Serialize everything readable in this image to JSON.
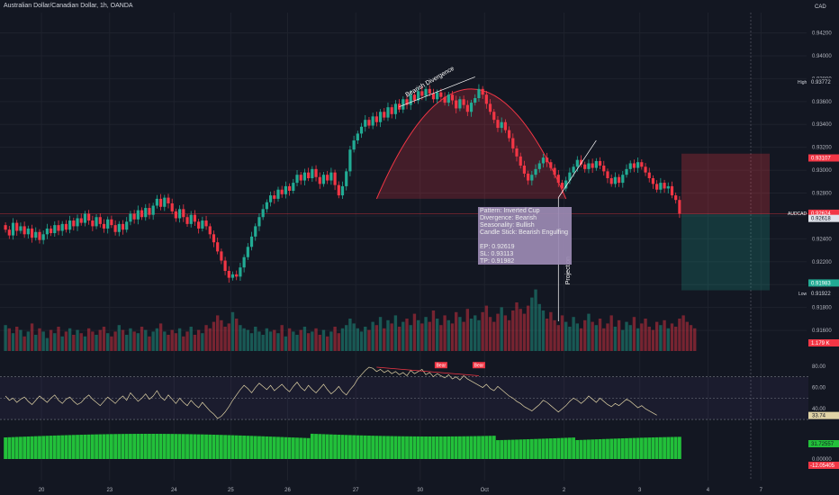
{
  "header": {
    "title": "Australian Dollar/Canadian Dollar, 1h, OANDA",
    "currency": "CAD"
  },
  "colors": {
    "background": "#131722",
    "bull": "#22ab94",
    "bear": "#f23645",
    "label_text": "#d1d4dc",
    "annotation_bg": "#9c8ab4",
    "macd_hist": "#22c03a"
  },
  "annotation": {
    "lines": [
      "Pattern: Inverted Cup",
      "Divergence: Bearish",
      "Seasonality: Bullish",
      "Candle Stick: Bearish Engulfing",
      "",
      "EP: 0.92619",
      "SL: 0.93113",
      "TP: 0.91982"
    ]
  },
  "chart_data": [
    {
      "type": "candlestick",
      "title": "",
      "price_axis_ticks": [
        "0.94200",
        "0.94000",
        "0.93800",
        "0.93600",
        "0.93400",
        "0.93200",
        "0.93000",
        "0.92800",
        "0.92600",
        "0.92400",
        "0.92200",
        "0.92000",
        "0.91800",
        "0.91600"
      ],
      "price_range": [
        0.9142,
        0.9433
      ],
      "time_axis_ticks": [
        "20",
        "23",
        "24",
        "25",
        "26",
        "27",
        "30",
        "Oct",
        "2",
        "3",
        "4",
        "7"
      ],
      "series_close": [
        0.9248,
        0.9243,
        0.9254,
        0.9247,
        0.9251,
        0.9244,
        0.9249,
        0.9241,
        0.9246,
        0.9239,
        0.9244,
        0.9249,
        0.9245,
        0.9252,
        0.9247,
        0.9253,
        0.9248,
        0.9256,
        0.9251,
        0.9258,
        0.9254,
        0.9262,
        0.9256,
        0.9251,
        0.9259,
        0.9253,
        0.9249,
        0.9257,
        0.9252,
        0.9246,
        0.9253,
        0.9248,
        0.9255,
        0.9262,
        0.9257,
        0.9265,
        0.9259,
        0.9267,
        0.9261,
        0.9269,
        0.9275,
        0.9268,
        0.9276,
        0.9271,
        0.9264,
        0.9258,
        0.9266,
        0.9259,
        0.9253,
        0.9261,
        0.9255,
        0.9249,
        0.9256,
        0.9251,
        0.9244,
        0.9237,
        0.9229,
        0.9221,
        0.9212,
        0.9206,
        0.9209,
        0.9207,
        0.9215,
        0.9224,
        0.9233,
        0.9242,
        0.9251,
        0.9259,
        0.9266,
        0.9272,
        0.9278,
        0.9275,
        0.9283,
        0.9279,
        0.9286,
        0.9282,
        0.9289,
        0.9296,
        0.9291,
        0.9298,
        0.9293,
        0.9301,
        0.9294,
        0.9288,
        0.9296,
        0.9291,
        0.9298,
        0.9287,
        0.9278,
        0.9286,
        0.9299,
        0.9318,
        0.9326,
        0.9332,
        0.9338,
        0.9344,
        0.9339,
        0.9347,
        0.9342,
        0.9351,
        0.9346,
        0.9355,
        0.9349,
        0.9358,
        0.9353,
        0.9362,
        0.9357,
        0.9366,
        0.9361,
        0.9369,
        0.9365,
        0.9371,
        0.9367,
        0.9362,
        0.9368,
        0.9364,
        0.9359,
        0.9366,
        0.9361,
        0.9354,
        0.9362,
        0.9357,
        0.9351,
        0.9359,
        0.9363,
        0.9371,
        0.9366,
        0.9358,
        0.9351,
        0.9344,
        0.9337,
        0.9342,
        0.9335,
        0.9328,
        0.9319,
        0.9312,
        0.9304,
        0.9297,
        0.9291,
        0.9296,
        0.9301,
        0.9306,
        0.9311,
        0.9307,
        0.9302,
        0.9296,
        0.9289,
        0.9284,
        0.9291,
        0.9298,
        0.9303,
        0.9309,
        0.9305,
        0.9301,
        0.9306,
        0.9302,
        0.9308,
        0.9304,
        0.9299,
        0.9293,
        0.9288,
        0.9294,
        0.9289,
        0.9296,
        0.9301,
        0.9306,
        0.9302,
        0.9307,
        0.9303,
        0.9298,
        0.9293,
        0.9288,
        0.9283,
        0.9289,
        0.9284,
        0.9286,
        0.9278,
        0.9274,
        0.9262
      ],
      "high_label": "High",
      "high_value": "0.93772",
      "low_label": "Low",
      "low_value": "0.91922",
      "price_tags": [
        {
          "label": "",
          "value": "0.93107"
        },
        {
          "label": "AUDCAD",
          "value": "0.92624",
          "sub": "30:40"
        },
        {
          "label": "",
          "value": "0.92618"
        },
        {
          "label": "",
          "value": "0.91983"
        }
      ],
      "position": {
        "entry": 0.92619,
        "stop": 0.93113,
        "target": 0.91982
      },
      "cup_shading": {
        "start_index": 98,
        "end_index": 148,
        "base_price": 0.9275
      },
      "annotations": {
        "bearish_divergence": "Bearish Divergence",
        "projection": "Projection"
      },
      "volume_label": "1.179 K",
      "volume": [
        16,
        14,
        11,
        15,
        13,
        9,
        12,
        17,
        10,
        14,
        12,
        8,
        13,
        11,
        15,
        9,
        12,
        14,
        10,
        13,
        11,
        9,
        14,
        12,
        10,
        13,
        15,
        11,
        9,
        12,
        16,
        13,
        10,
        14,
        12,
        11,
        15,
        13,
        9,
        12,
        14,
        17,
        12,
        10,
        13,
        11,
        14,
        9,
        12,
        15,
        10,
        13,
        11,
        16,
        14,
        18,
        22,
        19,
        15,
        17,
        24,
        20,
        16,
        14,
        13,
        11,
        15,
        12,
        10,
        14,
        12,
        13,
        11,
        16,
        9,
        14,
        12,
        10,
        13,
        15,
        11,
        12,
        14,
        10,
        13,
        9,
        12,
        15,
        11,
        14,
        16,
        20,
        17,
        14,
        12,
        15,
        13,
        18,
        16,
        21,
        14,
        19,
        17,
        22,
        15,
        18,
        20,
        16,
        23,
        19,
        17,
        21,
        18,
        25,
        20,
        16,
        22,
        19,
        17,
        24,
        21,
        18,
        26,
        20,
        22,
        19,
        24,
        28,
        21,
        18,
        23,
        27,
        22,
        19,
        25,
        30,
        26,
        23,
        28,
        33,
        38,
        29,
        25,
        20,
        24,
        19,
        16,
        22,
        18,
        15,
        21,
        17,
        14,
        19,
        23,
        18,
        16,
        20,
        14,
        17,
        22,
        15,
        19,
        13,
        18,
        16,
        21,
        14,
        17,
        20,
        15,
        13,
        18,
        16,
        19,
        14,
        17,
        15,
        20,
        22,
        18,
        16,
        14
      ],
      "rsi": {
        "levels": [
          "80.00",
          "60.00",
          "40.00"
        ],
        "current": "33.74",
        "badges": [
          "Bear",
          "Bear"
        ],
        "values": [
          52,
          48,
          50,
          46,
          49,
          51,
          47,
          44,
          48,
          52,
          49,
          46,
          50,
          53,
          48,
          45,
          49,
          51,
          47,
          44,
          46,
          50,
          53,
          49,
          46,
          43,
          47,
          51,
          48,
          45,
          49,
          52,
          48,
          55,
          51,
          47,
          50,
          54,
          49,
          52,
          57,
          51,
          48,
          53,
          49,
          45,
          50,
          46,
          43,
          48,
          44,
          41,
          46,
          42,
          38,
          35,
          31,
          33,
          37,
          42,
          48,
          53,
          58,
          62,
          59,
          55,
          60,
          64,
          61,
          58,
          62,
          57,
          60,
          63,
          59,
          56,
          61,
          65,
          60,
          57,
          62,
          58,
          55,
          59,
          63,
          58,
          54,
          57,
          61,
          56,
          53,
          58,
          62,
          68,
          72,
          76,
          79,
          78,
          75,
          77,
          74,
          76,
          73,
          75,
          72,
          74,
          71,
          76,
          73,
          75,
          77,
          72,
          74,
          70,
          73,
          71,
          69,
          72,
          68,
          70,
          67,
          71,
          68,
          66,
          64,
          62,
          60,
          63,
          59,
          57,
          61,
          58,
          55,
          52,
          50,
          47,
          45,
          42,
          40,
          38,
          41,
          44,
          48,
          46,
          43,
          40,
          37,
          40,
          43,
          47,
          50,
          48,
          45,
          48,
          52,
          49,
          46,
          50,
          47,
          44,
          42,
          45,
          43,
          46,
          49,
          47,
          44,
          41,
          43,
          40,
          38,
          36,
          34
        ]
      },
      "macd": {
        "levels": [
          "0.00000"
        ],
        "value_positive": "31.72557",
        "value_negative": "-12.05405",
        "histogram_range": [
          0,
          30
        ]
      }
    }
  ]
}
